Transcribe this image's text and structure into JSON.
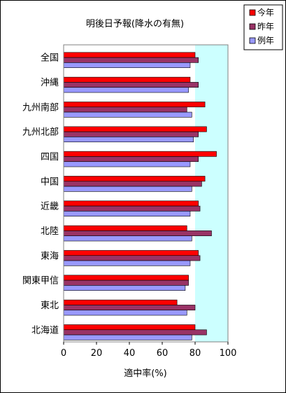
{
  "chart_data": {
    "type": "bar",
    "orientation": "horizontal",
    "title": "明後日予報(降水の有無)",
    "xlabel": "適中率(%)",
    "ylabel": "",
    "xlim": [
      0,
      100
    ],
    "xticks": [
      "0",
      "20",
      "40",
      "60",
      "80",
      "100"
    ],
    "categories": [
      "全国",
      "沖縄",
      "九州南部",
      "九州北部",
      "四国",
      "中国",
      "近畿",
      "北陸",
      "東海",
      "関東甲信",
      "東北",
      "北海道"
    ],
    "series": [
      {
        "name": "今年",
        "color": "#ff0000",
        "values": [
          80,
          77,
          86,
          87,
          93,
          86,
          82,
          75,
          82,
          76,
          69,
          80
        ]
      },
      {
        "name": "昨年",
        "color": "#993366",
        "values": [
          82,
          82,
          75,
          82,
          82,
          84,
          83,
          90,
          83,
          76,
          80,
          87
        ]
      },
      {
        "name": "例年",
        "color": "#9999ff",
        "values": [
          77,
          76,
          78,
          79,
          77,
          78,
          77,
          78,
          77,
          74,
          75,
          78
        ]
      }
    ],
    "shaded_band": {
      "from": 80,
      "to": 100,
      "color": "#ccffff"
    },
    "legend_position": "top-right",
    "grid": false
  }
}
